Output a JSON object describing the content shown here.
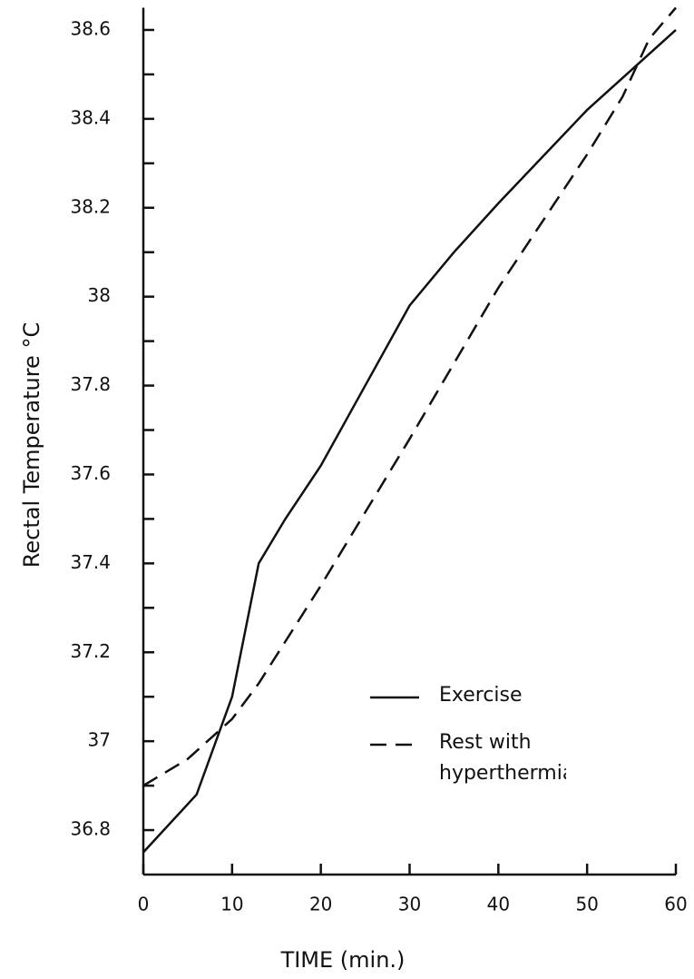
{
  "chart_data": {
    "type": "line",
    "x_label": "TIME (min.)",
    "y_label": "Rectal Temperature °C",
    "xlim": [
      0,
      60
    ],
    "xticks": [
      0,
      10,
      20,
      30,
      40,
      50,
      60
    ],
    "ylim": [
      36.7,
      38.65
    ],
    "yticks": [
      36.8,
      37.0,
      37.2,
      37.4,
      37.6,
      37.8,
      38.0,
      38.2,
      38.4,
      38.6
    ],
    "yticks_minor": [
      36.9,
      37.1,
      37.3,
      37.5,
      37.7,
      37.9,
      38.1,
      38.3,
      38.5
    ],
    "series": [
      {
        "name": "Exercise",
        "color": "#111111",
        "dash": "none",
        "x": [
          0,
          6,
          10,
          13,
          16,
          20,
          25,
          30,
          35,
          40,
          50,
          60
        ],
        "values": [
          36.75,
          36.88,
          37.1,
          37.4,
          37.5,
          37.62,
          37.8,
          37.98,
          38.1,
          38.21,
          38.42,
          38.6
        ]
      },
      {
        "name": "Rest with hyperthermia",
        "color": "#111111",
        "dash": "18 10",
        "x": [
          0,
          5,
          10,
          13,
          20,
          30,
          40,
          50,
          54,
          57,
          60
        ],
        "values": [
          36.9,
          36.96,
          37.05,
          37.13,
          37.35,
          37.68,
          38.02,
          38.32,
          38.45,
          38.58,
          38.65
        ]
      }
    ]
  }
}
